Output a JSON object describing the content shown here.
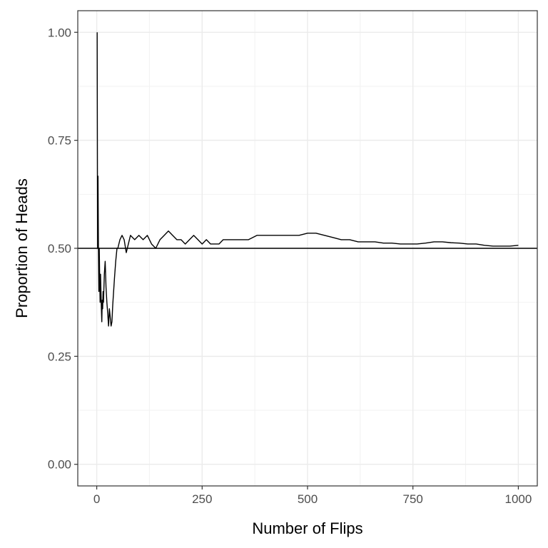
{
  "chart_data": {
    "type": "line",
    "title": "",
    "xlabel": "Number of Flips",
    "ylabel": "Proportion of Heads",
    "xlim": [
      -45,
      1045
    ],
    "ylim": [
      -0.05,
      1.05
    ],
    "x_ticks": [
      0,
      250,
      500,
      750,
      1000
    ],
    "x_tick_labels": [
      "0",
      "250",
      "500",
      "750",
      "1000"
    ],
    "y_ticks": [
      0,
      0.25,
      0.5,
      0.75,
      1.0
    ],
    "y_tick_labels": [
      "0.00",
      "0.25",
      "0.50",
      "0.75",
      "1.00"
    ],
    "grid": true,
    "legend": "none",
    "reference_line": {
      "y": 0.5,
      "color": "#000000"
    },
    "series": [
      {
        "color": "#000000",
        "x": [
          1,
          2,
          3,
          4,
          5,
          6,
          7,
          8,
          9,
          10,
          11,
          12,
          13,
          14,
          15,
          16,
          18,
          20,
          22,
          24,
          26,
          28,
          30,
          32,
          34,
          36,
          38,
          40,
          42,
          45,
          48,
          50,
          55,
          60,
          65,
          70,
          75,
          80,
          90,
          100,
          110,
          120,
          130,
          140,
          150,
          160,
          170,
          180,
          190,
          200,
          210,
          220,
          230,
          240,
          250,
          260,
          270,
          280,
          290,
          300,
          320,
          340,
          360,
          380,
          400,
          420,
          440,
          460,
          480,
          500,
          520,
          540,
          560,
          580,
          600,
          620,
          640,
          660,
          680,
          700,
          720,
          740,
          760,
          780,
          800,
          820,
          840,
          860,
          880,
          900,
          920,
          940,
          960,
          980,
          1000
        ],
        "y": [
          1.0,
          0.5,
          0.667,
          0.5,
          0.4,
          0.5,
          0.43,
          0.375,
          0.44,
          0.4,
          0.36,
          0.33,
          0.38,
          0.36,
          0.4,
          0.375,
          0.44,
          0.47,
          0.41,
          0.375,
          0.35,
          0.32,
          0.36,
          0.34,
          0.32,
          0.33,
          0.37,
          0.4,
          0.43,
          0.47,
          0.5,
          0.5,
          0.52,
          0.53,
          0.52,
          0.49,
          0.51,
          0.53,
          0.52,
          0.53,
          0.52,
          0.53,
          0.51,
          0.5,
          0.52,
          0.53,
          0.54,
          0.53,
          0.52,
          0.52,
          0.51,
          0.52,
          0.53,
          0.52,
          0.51,
          0.52,
          0.51,
          0.51,
          0.51,
          0.52,
          0.52,
          0.52,
          0.52,
          0.53,
          0.53,
          0.53,
          0.53,
          0.53,
          0.53,
          0.535,
          0.535,
          0.53,
          0.525,
          0.52,
          0.52,
          0.515,
          0.515,
          0.515,
          0.512,
          0.512,
          0.51,
          0.51,
          0.51,
          0.512,
          0.515,
          0.515,
          0.513,
          0.512,
          0.51,
          0.51,
          0.507,
          0.505,
          0.505,
          0.505,
          0.507
        ]
      }
    ]
  }
}
